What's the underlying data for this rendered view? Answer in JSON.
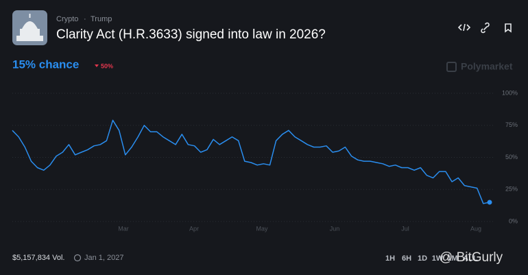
{
  "header": {
    "categories": [
      "Crypto",
      "Trump"
    ],
    "separator": "·",
    "title": "Clarity Act (H.R.3633) signed into law in 2026?",
    "chance": "15% chance",
    "change": "50%",
    "brand": "Polymarket"
  },
  "chart_data": {
    "type": "line",
    "color": "#2a8ef0",
    "values": [
      71,
      66,
      58,
      47,
      42,
      40,
      44,
      51,
      54,
      60,
      52,
      54,
      56,
      59,
      60,
      63,
      79,
      71,
      52,
      58,
      66,
      75,
      70,
      70,
      66,
      63,
      60,
      68,
      60,
      59,
      54,
      56,
      64,
      60,
      63,
      66,
      63,
      47,
      46,
      44,
      45,
      44,
      63,
      68,
      71,
      66,
      63,
      60,
      58,
      58,
      59,
      54,
      55,
      58,
      51,
      48,
      47,
      47,
      46,
      45,
      43,
      44,
      42,
      42,
      40,
      42,
      36,
      34,
      39,
      39,
      31,
      34,
      28,
      27,
      26,
      14,
      15
    ],
    "xticks": [
      "Mar",
      "Apr",
      "May",
      "Jun",
      "Jul",
      "Aug"
    ],
    "ylim": [
      0,
      100
    ],
    "yticks": [
      {
        "value": 0,
        "label": "0%"
      },
      {
        "value": 25,
        "label": "25%"
      },
      {
        "value": 50,
        "label": "50%"
      },
      {
        "value": 75,
        "label": "75%"
      },
      {
        "value": 100,
        "label": "100%"
      }
    ],
    "grid": true
  },
  "footer": {
    "volume": "$5,157,834 Vol.",
    "end_date": "Jan 1, 2027",
    "ranges": [
      "1H",
      "6H",
      "1D",
      "1W",
      "1M",
      "ALL"
    ],
    "watermark": "@ BitGurly"
  }
}
